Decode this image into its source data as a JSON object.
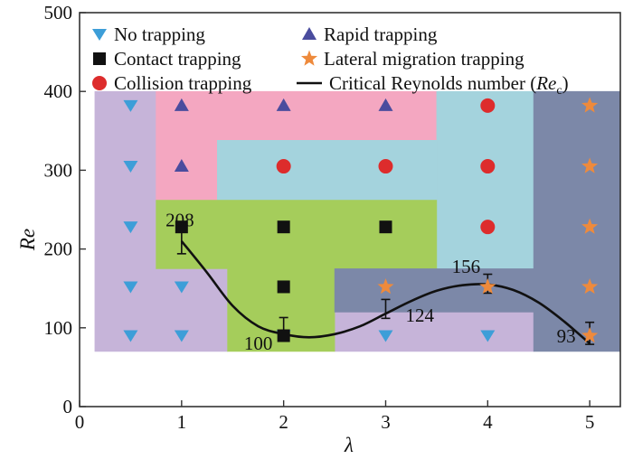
{
  "chart_data": {
    "type": "scatter",
    "xlabel": "λ",
    "ylabel": "Re",
    "xlim": [
      0,
      5.3
    ],
    "ylim": [
      0,
      500
    ],
    "x_ticks": [
      "0",
      "1",
      "2",
      "3",
      "4",
      "5"
    ],
    "y_ticks": [
      "0",
      "100",
      "200",
      "300",
      "400",
      "500"
    ],
    "legend": {
      "placement": "top",
      "items": [
        {
          "key": "no",
          "label": "No trapping"
        },
        {
          "key": "rapid",
          "label": "Rapid trapping"
        },
        {
          "key": "contact",
          "label": "Contact trapping"
        },
        {
          "key": "lateral",
          "label": "Lateral migration trapping"
        },
        {
          "key": "collision",
          "label": "Collision trapping"
        },
        {
          "key": "curve",
          "label": "Critical Reynolds number (",
          "label_italic": "Re",
          "label_sub": "c",
          "label_end": ")"
        }
      ]
    },
    "colors": {
      "no": "#3d9ed8",
      "rapid": "#4a4c9e",
      "contact": "#111111",
      "lateral": "#ee8a3c",
      "collision": "#dd2c2c",
      "curve": "#111111",
      "region_no": "#c6b4d9",
      "region_rapid": "#f4a7c1",
      "region_collision": "#a4d3dd",
      "region_contact": "#a5cd5b",
      "region_lateral": "#7c88a8"
    },
    "regions": [
      {
        "class": "no",
        "polygon": [
          [
            0.15,
            70
          ],
          [
            0.15,
            400
          ],
          [
            0.75,
            400
          ],
          [
            0.75,
            175
          ],
          [
            1.45,
            175
          ],
          [
            1.45,
            70
          ]
        ]
      },
      {
        "class": "no",
        "polygon": [
          [
            2.5,
            70
          ],
          [
            2.5,
            120
          ],
          [
            4.45,
            120
          ],
          [
            4.45,
            70
          ]
        ]
      },
      {
        "class": "rapid",
        "polygon": [
          [
            0.75,
            400
          ],
          [
            0.75,
            262
          ],
          [
            1.35,
            262
          ],
          [
            1.35,
            338
          ],
          [
            3.5,
            338
          ],
          [
            3.5,
            400
          ]
        ]
      },
      {
        "class": "collision",
        "polygon": [
          [
            1.35,
            338
          ],
          [
            1.35,
            262
          ],
          [
            3.5,
            262
          ],
          [
            3.5,
            400
          ],
          [
            4.45,
            400
          ],
          [
            4.45,
            175
          ],
          [
            3.5,
            175
          ],
          [
            3.5,
            338
          ]
        ]
      },
      {
        "class": "contact",
        "polygon": [
          [
            0.75,
            262
          ],
          [
            0.75,
            175
          ],
          [
            1.45,
            175
          ],
          [
            1.45,
            70
          ],
          [
            2.5,
            70
          ],
          [
            2.5,
            175
          ],
          [
            3.5,
            175
          ],
          [
            3.5,
            262
          ]
        ]
      },
      {
        "class": "lateral",
        "polygon": [
          [
            4.45,
            400
          ],
          [
            4.45,
            70
          ],
          [
            5.3,
            70
          ],
          [
            5.3,
            400
          ]
        ]
      },
      {
        "class": "lateral",
        "polygon": [
          [
            2.5,
            175
          ],
          [
            4.45,
            175
          ],
          [
            4.45,
            120
          ],
          [
            2.5,
            120
          ]
        ]
      }
    ],
    "series": [
      {
        "key": "no",
        "name": "No trapping",
        "points": [
          [
            0.5,
            382
          ],
          [
            0.5,
            305
          ],
          [
            0.5,
            228
          ],
          [
            0.5,
            152
          ],
          [
            1,
            152
          ],
          [
            0.5,
            90
          ],
          [
            1,
            90
          ],
          [
            2,
            90
          ],
          [
            3,
            90
          ],
          [
            4,
            90
          ]
        ]
      },
      {
        "key": "rapid",
        "name": "Rapid trapping",
        "points": [
          [
            1,
            382
          ],
          [
            2,
            382
          ],
          [
            3,
            382
          ],
          [
            1,
            305
          ]
        ]
      },
      {
        "key": "contact",
        "name": "Contact trapping",
        "points": [
          [
            1,
            228
          ],
          [
            2,
            228
          ],
          [
            3,
            228
          ],
          [
            2,
            152
          ],
          [
            2,
            90
          ]
        ]
      },
      {
        "key": "collision",
        "name": "Collision trapping",
        "points": [
          [
            4,
            382
          ],
          [
            2,
            305
          ],
          [
            3,
            305
          ],
          [
            4,
            305
          ],
          [
            4,
            228
          ]
        ]
      },
      {
        "key": "lateral",
        "name": "Lateral migration trapping",
        "points": [
          [
            5,
            382
          ],
          [
            5,
            305
          ],
          [
            5,
            228
          ],
          [
            3,
            152
          ],
          [
            4,
            152
          ],
          [
            5,
            152
          ],
          [
            5,
            90
          ]
        ]
      }
    ],
    "critical_points": [
      {
        "x": 1,
        "y": 208,
        "err": 14,
        "label": "208"
      },
      {
        "x": 2,
        "y": 100,
        "err": 13,
        "label": "100"
      },
      {
        "x": 3,
        "y": 124,
        "err": 12,
        "label": "124"
      },
      {
        "x": 4,
        "y": 156,
        "err": 12,
        "label": "156"
      },
      {
        "x": 5,
        "y": 93,
        "err": 14,
        "label": "93"
      }
    ],
    "critical_curve": [
      [
        1,
        210
      ],
      [
        1.25,
        170
      ],
      [
        1.5,
        128
      ],
      [
        1.75,
        102
      ],
      [
        2,
        92
      ],
      [
        2.25,
        88
      ],
      [
        2.5,
        92
      ],
      [
        2.75,
        102
      ],
      [
        3,
        118
      ],
      [
        3.25,
        134
      ],
      [
        3.5,
        147
      ],
      [
        3.75,
        154
      ],
      [
        4,
        155
      ],
      [
        4.25,
        148
      ],
      [
        4.5,
        132
      ],
      [
        4.75,
        108
      ],
      [
        5,
        80
      ]
    ]
  }
}
